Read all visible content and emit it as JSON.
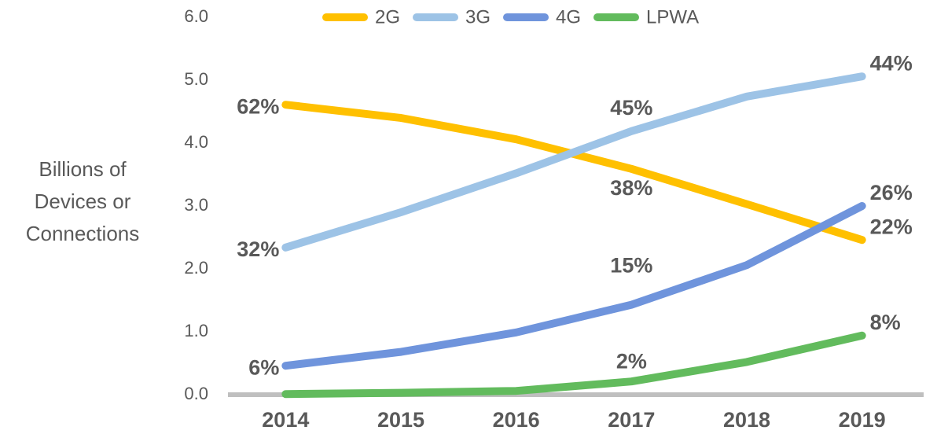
{
  "chart_data": {
    "type": "line",
    "ylabel": [
      "Billions of",
      "Devices or",
      "Connections"
    ],
    "categories": [
      "2014",
      "2015",
      "2016",
      "2017",
      "2018",
      "2019"
    ],
    "series": [
      {
        "name": "2G",
        "color": "#ffc000",
        "values": [
          4.61,
          4.4,
          4.06,
          3.59,
          3.03,
          2.46
        ],
        "share_labels": [
          "62%",
          null,
          null,
          "38%",
          null,
          "22%"
        ]
      },
      {
        "name": "3G",
        "color": "#9dc3e6",
        "values": [
          2.34,
          2.9,
          3.52,
          4.19,
          4.74,
          5.06
        ],
        "share_labels": [
          "32%",
          null,
          null,
          "45%",
          null,
          "44%"
        ]
      },
      {
        "name": "4G",
        "color": "#6f94dc",
        "values": [
          0.46,
          0.68,
          0.99,
          1.43,
          2.06,
          3.0
        ],
        "share_labels": [
          "6%",
          null,
          null,
          "15%",
          null,
          "26%"
        ]
      },
      {
        "name": "LPWA",
        "color": "#62bb5d",
        "values": [
          0.01,
          0.03,
          0.06,
          0.21,
          0.52,
          0.94
        ],
        "share_labels": [
          null,
          null,
          null,
          "2%",
          null,
          "8%"
        ]
      }
    ],
    "ylim": [
      0,
      6
    ],
    "yticks": [
      {
        "value": 0,
        "label": "0.0"
      },
      {
        "value": 1,
        "label": "1.0"
      },
      {
        "value": 2,
        "label": "2.0"
      },
      {
        "value": 3,
        "label": "3.0"
      },
      {
        "value": 4,
        "label": "4.0"
      },
      {
        "value": 5,
        "label": "5.0"
      },
      {
        "value": 6,
        "label": "6.0"
      }
    ],
    "legend": "top"
  }
}
